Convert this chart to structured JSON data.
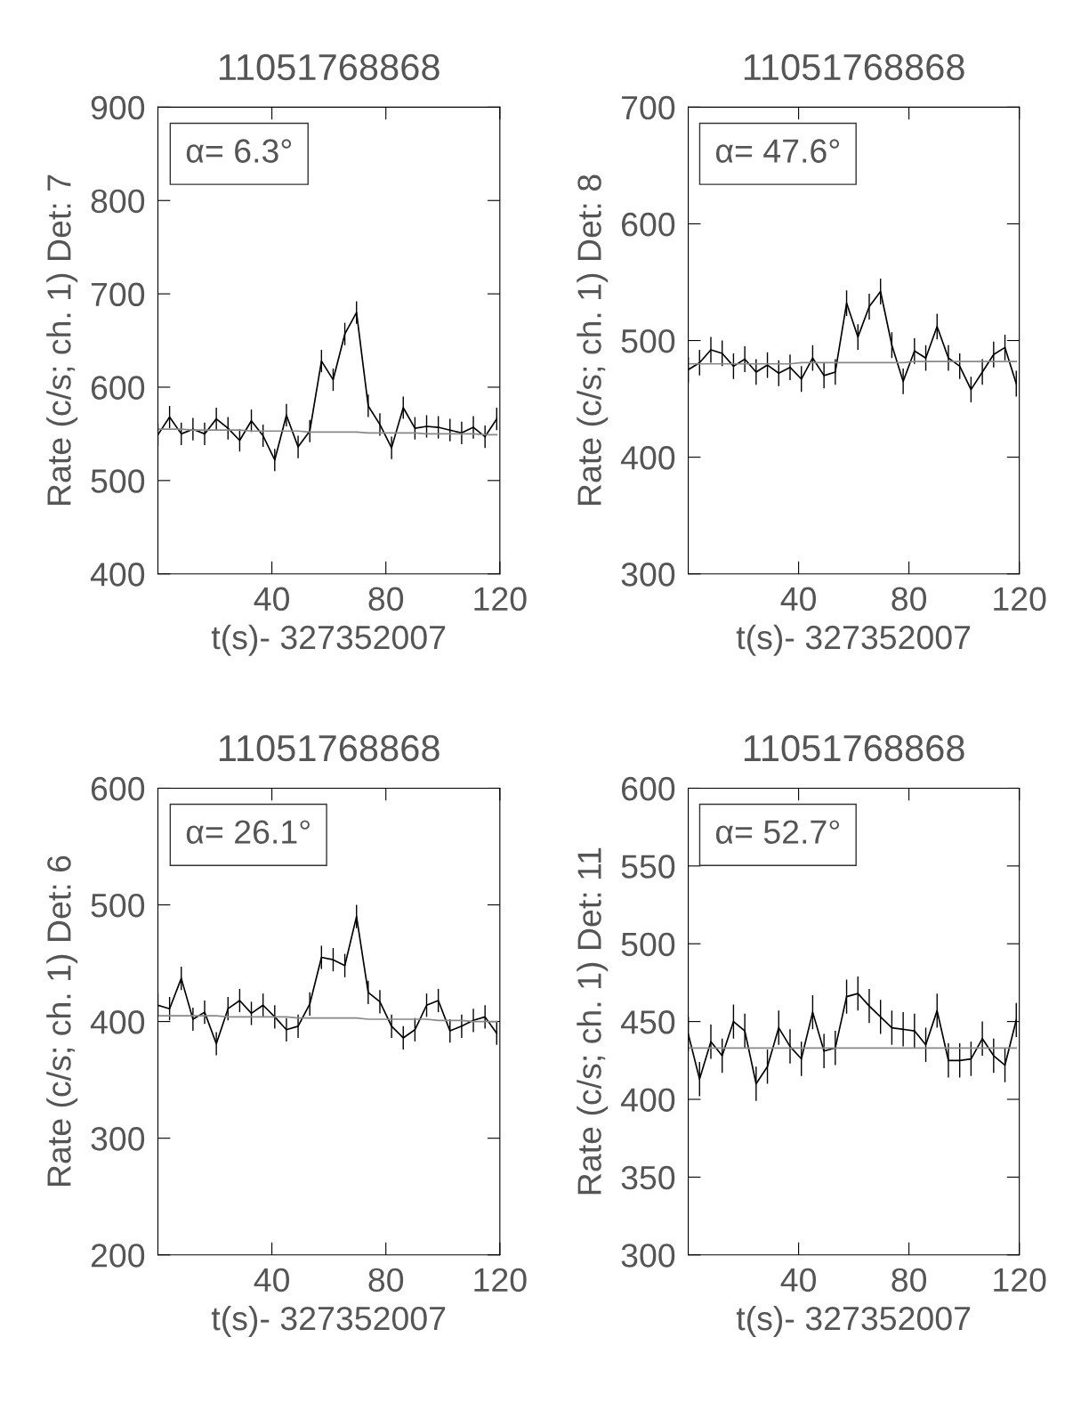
{
  "chart_data": [
    {
      "type": "line",
      "title": "11051768868",
      "xlabel": "t(s)- 327352007",
      "ylabel": "Rate (c/s; ch. 1) Det: 7",
      "annotations": [
        "α= 6.3°"
      ],
      "x": [
        0,
        4.1,
        8.2,
        12.3,
        16.4,
        20.5,
        24.6,
        28.7,
        32.8,
        36.9,
        41,
        45.1,
        49.2,
        53.3,
        57.4,
        61.5,
        65.6,
        69.7,
        73.8,
        77.9,
        82,
        86.1,
        90.2,
        94.3,
        98.4,
        102.5,
        106.6,
        110.7,
        114.8,
        118.9
      ],
      "xlim": [
        0,
        120
      ],
      "xticks": [
        40,
        80,
        120
      ],
      "ylim": [
        400,
        900
      ],
      "yticks": [
        400,
        500,
        600,
        700,
        800,
        900
      ],
      "grid": false,
      "legend": false,
      "series": [
        {
          "color": "#000000",
          "values": [
            549,
            568,
            550,
            555,
            550,
            566,
            556,
            543,
            564,
            548,
            522,
            570,
            536,
            553,
            628,
            608,
            657,
            680,
            580,
            560,
            535,
            578,
            556,
            558,
            557,
            554,
            551,
            557,
            547,
            566
          ],
          "errors": [
            12,
            12,
            12,
            12,
            12,
            12,
            12,
            12,
            12,
            12,
            12,
            12,
            12,
            12,
            12,
            12,
            12,
            12,
            12,
            12,
            12,
            12,
            12,
            12,
            12,
            12,
            12,
            12,
            12,
            12
          ]
        },
        {
          "type": "line",
          "color": "#888888",
          "values": [
            555,
            555,
            555,
            554,
            554,
            554,
            554,
            554,
            553,
            553,
            553,
            553,
            553,
            552,
            552,
            552,
            552,
            552,
            551,
            551,
            551,
            551,
            551,
            550,
            550,
            550,
            550,
            550,
            549,
            549
          ]
        }
      ]
    },
    {
      "type": "line",
      "title": "11051768868",
      "xlabel": "t(s)- 327352007",
      "ylabel": "Rate (c/s; ch. 1) Det: 8",
      "annotations": [
        "α= 47.6°"
      ],
      "x": [
        0,
        4.1,
        8.2,
        12.3,
        16.4,
        20.5,
        24.6,
        28.7,
        32.8,
        36.9,
        41,
        45.1,
        49.2,
        53.3,
        57.4,
        61.5,
        65.6,
        69.7,
        73.8,
        77.9,
        82,
        86.1,
        90.2,
        94.3,
        98.4,
        102.5,
        106.6,
        110.7,
        114.8,
        118.9
      ],
      "xlim": [
        0,
        120
      ],
      "xticks": [
        40,
        80,
        120
      ],
      "ylim": [
        300,
        700
      ],
      "yticks": [
        300,
        400,
        500,
        600,
        700
      ],
      "grid": false,
      "legend": false,
      "series": [
        {
          "color": "#000000",
          "values": [
            475,
            481,
            492,
            489,
            478,
            484,
            473,
            479,
            472,
            477,
            467,
            485,
            470,
            473,
            532,
            503,
            529,
            542,
            496,
            465,
            491,
            485,
            512,
            485,
            478,
            458,
            473,
            488,
            494,
            463
          ],
          "errors": [
            11,
            11,
            11,
            11,
            11,
            11,
            11,
            11,
            11,
            11,
            11,
            11,
            11,
            11,
            11,
            11,
            11,
            11,
            11,
            11,
            11,
            11,
            11,
            11,
            11,
            11,
            11,
            11,
            11,
            11
          ]
        },
        {
          "type": "line",
          "color": "#888888",
          "values": [
            480,
            480,
            480,
            480,
            480,
            480,
            480,
            480,
            480,
            480,
            481,
            481,
            481,
            481,
            481,
            481,
            481,
            481,
            481,
            481,
            482,
            482,
            482,
            482,
            482,
            482,
            482,
            482,
            482,
            482
          ]
        }
      ]
    },
    {
      "type": "line",
      "title": "11051768868",
      "xlabel": "t(s)- 327352007",
      "ylabel": "Rate (c/s; ch. 1) Det: 6",
      "annotations": [
        "α= 26.1°"
      ],
      "x": [
        0,
        4.1,
        8.2,
        12.3,
        16.4,
        20.5,
        24.6,
        28.7,
        32.8,
        36.9,
        41,
        45.1,
        49.2,
        53.3,
        57.4,
        61.5,
        65.6,
        69.7,
        73.8,
        77.9,
        82,
        86.1,
        90.2,
        94.3,
        98.4,
        102.5,
        106.6,
        110.7,
        114.8,
        118.9
      ],
      "xlim": [
        0,
        120
      ],
      "xticks": [
        40,
        80,
        120
      ],
      "ylim": [
        200,
        600
      ],
      "yticks": [
        200,
        300,
        400,
        500,
        600
      ],
      "grid": false,
      "legend": false,
      "series": [
        {
          "color": "#000000",
          "values": [
            414,
            411,
            437,
            402,
            408,
            381,
            411,
            418,
            407,
            414,
            404,
            393,
            396,
            415,
            455,
            453,
            448,
            490,
            425,
            417,
            396,
            386,
            393,
            414,
            418,
            392,
            396,
            401,
            404,
            390
          ],
          "errors": [
            10,
            10,
            10,
            10,
            10,
            10,
            10,
            10,
            10,
            10,
            10,
            10,
            10,
            10,
            10,
            10,
            10,
            10,
            10,
            10,
            10,
            10,
            10,
            10,
            10,
            10,
            10,
            10,
            10,
            10
          ]
        },
        {
          "type": "line",
          "color": "#888888",
          "values": [
            405,
            405,
            405,
            405,
            405,
            405,
            404,
            404,
            404,
            404,
            404,
            404,
            403,
            403,
            403,
            403,
            403,
            403,
            402,
            402,
            402,
            402,
            402,
            402,
            401,
            401,
            401,
            400,
            400,
            400
          ]
        }
      ]
    },
    {
      "type": "line",
      "title": "11051768868",
      "xlabel": "t(s)- 327352007",
      "ylabel": "Rate (c/s; ch. 1) Det: 11",
      "annotations": [
        "α= 52.7°"
      ],
      "x": [
        0,
        4.1,
        8.2,
        12.3,
        16.4,
        20.5,
        24.6,
        28.7,
        32.8,
        36.9,
        41,
        45.1,
        49.2,
        53.3,
        57.4,
        61.5,
        65.6,
        69.7,
        73.8,
        77.9,
        82,
        86.1,
        90.2,
        94.3,
        98.4,
        102.5,
        106.6,
        110.7,
        114.8,
        118.9
      ],
      "xlim": [
        0,
        120
      ],
      "xticks": [
        40,
        80,
        120
      ],
      "ylim": [
        300,
        600
      ],
      "yticks": [
        300,
        350,
        400,
        450,
        500,
        550,
        600
      ],
      "grid": false,
      "legend": false,
      "series": [
        {
          "color": "#000000",
          "values": [
            442,
            413,
            437,
            428,
            450,
            444,
            410,
            421,
            446,
            434,
            426,
            456,
            431,
            433,
            466,
            468,
            460,
            453,
            446,
            445,
            444,
            435,
            457,
            425,
            425,
            426,
            439,
            428,
            422,
            451
          ],
          "errors": [
            11,
            11,
            11,
            11,
            11,
            11,
            11,
            11,
            11,
            11,
            11,
            11,
            11,
            11,
            11,
            11,
            11,
            11,
            11,
            11,
            11,
            11,
            11,
            11,
            11,
            11,
            11,
            11,
            11,
            11
          ]
        },
        {
          "type": "line",
          "color": "#888888",
          "values": [
            433,
            433,
            433,
            433,
            433,
            433,
            433,
            433,
            433,
            433,
            433,
            433,
            433,
            433,
            433,
            433,
            433,
            433,
            433,
            433,
            433,
            433,
            433,
            433,
            433,
            433,
            433,
            433,
            433,
            433
          ]
        }
      ]
    }
  ]
}
